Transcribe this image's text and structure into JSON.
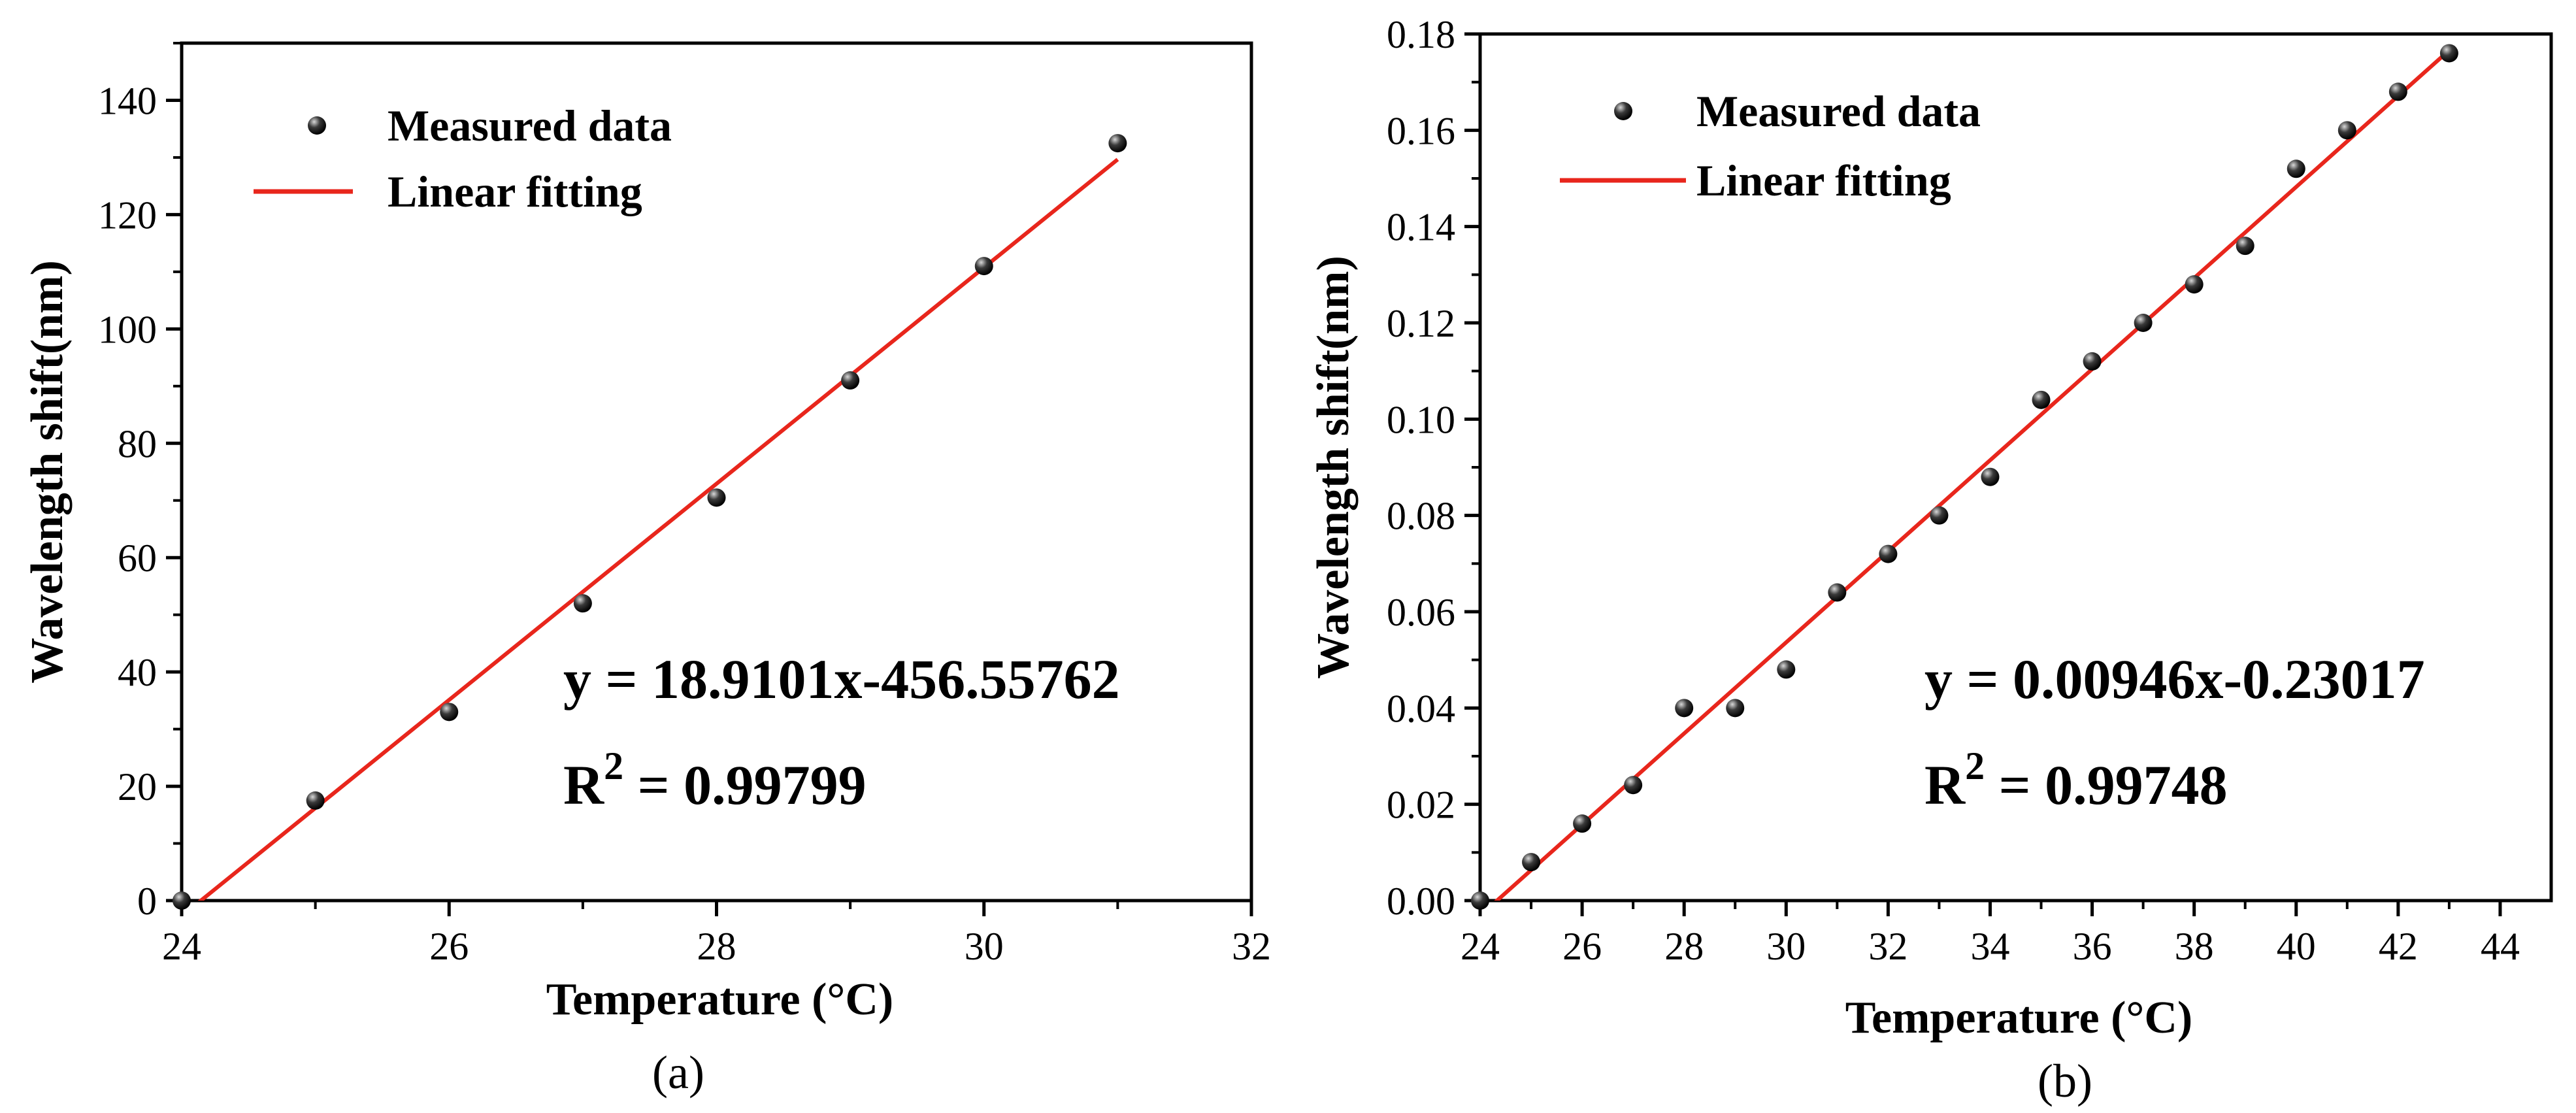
{
  "chart_data": [
    {
      "type": "scatter",
      "caption": "(a)",
      "xlabel": "Temperature (°C)",
      "ylabel": "Wavelength shift(nm)",
      "xlim": [
        24,
        32
      ],
      "ylim": [
        0,
        150
      ],
      "xticks": [
        "24",
        "26",
        "28",
        "30",
        "32"
      ],
      "yticks": [
        "0",
        "20",
        "40",
        "60",
        "80",
        "100",
        "120",
        "140"
      ],
      "series": [
        {
          "name": "Measured data",
          "kind": "points",
          "x": [
            24,
            25,
            26,
            27,
            28,
            29,
            30,
            31
          ],
          "y": [
            0,
            17.5,
            33,
            52,
            70.5,
            91,
            111,
            132.5
          ]
        },
        {
          "name": "Linear fitting",
          "kind": "line",
          "color": "#e8261c",
          "slope": 18.9101,
          "intercept": -456.55762,
          "x_range": [
            24,
            31
          ]
        }
      ],
      "equation": "y = 18.9101x-456.55762",
      "r2_prefix": "R",
      "r2_sup": "2",
      "r2_value": " = 0.99799",
      "legend_position": "top-left"
    },
    {
      "type": "scatter",
      "caption": "(b)",
      "xlabel": "Temperature (°C)",
      "ylabel": "Wavelength shift(nm)",
      "xlim": [
        24,
        45
      ],
      "ylim": [
        0,
        0.18
      ],
      "xticks": [
        "24",
        "26",
        "28",
        "30",
        "32",
        "34",
        "36",
        "38",
        "40",
        "42",
        "44"
      ],
      "yticks": [
        "0.00",
        "0.02",
        "0.04",
        "0.06",
        "0.08",
        "0.10",
        "0.12",
        "0.14",
        "0.16",
        "0.18"
      ],
      "series": [
        {
          "name": "Measured data",
          "kind": "points",
          "x": [
            24,
            25,
            26,
            27,
            28,
            29,
            30,
            31,
            32,
            33,
            34,
            35,
            36,
            37,
            38,
            39,
            40,
            41,
            42,
            43
          ],
          "y": [
            0,
            0.008,
            0.016,
            0.024,
            0.04,
            0.04,
            0.048,
            0.064,
            0.072,
            0.08,
            0.088,
            0.104,
            0.112,
            0.12,
            0.128,
            0.136,
            0.152,
            0.16,
            0.168,
            0.176
          ]
        },
        {
          "name": "Linear fitting",
          "kind": "line",
          "color": "#e8261c",
          "slope": 0.00946,
          "intercept": -0.23017,
          "x_range": [
            24,
            43
          ]
        }
      ],
      "equation": "y = 0.00946x-0.23017",
      "r2_prefix": "R",
      "r2_sup": "2",
      "r2_value": " = 0.99748",
      "legend_position": "top-left"
    }
  ]
}
